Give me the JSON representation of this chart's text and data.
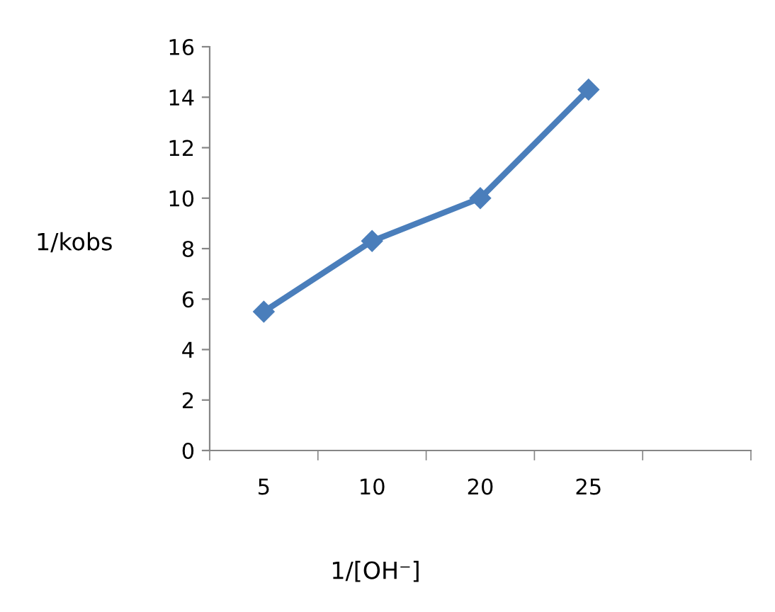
{
  "chart_data": {
    "type": "line",
    "xlabel": "1/[OH⁻]",
    "ylabel": "1/kobs",
    "categories": [
      "5",
      "10",
      "20",
      "25",
      null
    ],
    "series": [
      {
        "color": "#4a7ebb",
        "values": [
          5.5,
          8.3,
          10.0,
          14.3,
          null
        ]
      }
    ],
    "ylim": [
      0,
      16
    ],
    "yticks": [
      0,
      2,
      4,
      6,
      8,
      10,
      12,
      14,
      16
    ],
    "marker": "diamond",
    "line_style": "solid",
    "grid": false
  }
}
